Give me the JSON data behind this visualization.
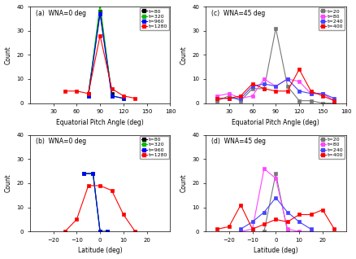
{
  "panel_a": {
    "title": "(a)  WNA=0 deg",
    "xlabel": "Equatorial Pitch Angle (deg)",
    "ylabel": "Count",
    "xlim": [
      0,
      180
    ],
    "ylim": [
      0,
      40
    ],
    "xticks": [
      30,
      60,
      90,
      120,
      150,
      180
    ],
    "yticks": [
      0,
      10,
      20,
      30,
      40
    ],
    "series": [
      {
        "label": "t=80",
        "color": "#000000",
        "x": [
          75,
          90,
          105
        ],
        "y": [
          4,
          38,
          4
        ]
      },
      {
        "label": "t=320",
        "color": "#00bb00",
        "x": [
          75,
          90,
          105,
          120
        ],
        "y": [
          3,
          41,
          3,
          2
        ]
      },
      {
        "label": "t=960",
        "color": "#0000ff",
        "x": [
          75,
          90,
          105,
          120
        ],
        "y": [
          3,
          37,
          3,
          2
        ]
      },
      {
        "label": "t=1280",
        "color": "#ff0000",
        "x": [
          45,
          60,
          75,
          90,
          105,
          120,
          135
        ],
        "y": [
          5,
          5,
          4,
          28,
          6,
          3,
          2
        ]
      }
    ]
  },
  "panel_b": {
    "title": "(b)  WNA=0 deg",
    "xlabel": "Latitude (deg)",
    "ylabel": "Count",
    "xlim": [
      -30,
      30
    ],
    "ylim": [
      0,
      40
    ],
    "xticks": [
      -20,
      -10,
      0,
      10,
      20
    ],
    "yticks": [
      0,
      10,
      20,
      30,
      40
    ],
    "series": [
      {
        "label": "t=80",
        "color": "#000000",
        "x": [
          -7,
          -3,
          0,
          3
        ],
        "y": [
          24,
          24,
          0,
          0
        ]
      },
      {
        "label": "t=320",
        "color": "#00bb00",
        "x": [
          -7,
          -3,
          0,
          3
        ],
        "y": [
          24,
          24,
          0,
          0
        ]
      },
      {
        "label": "t=960",
        "color": "#0000ff",
        "x": [
          -7,
          -3,
          0,
          3
        ],
        "y": [
          24,
          24,
          0,
          0
        ]
      },
      {
        "label": "t=1280",
        "color": "#ff0000",
        "x": [
          -15,
          -10,
          -5,
          0,
          5,
          10,
          15
        ],
        "y": [
          0,
          5,
          19,
          19,
          17,
          7,
          0
        ]
      }
    ]
  },
  "panel_c": {
    "title": "(c)  WNA=45 deg",
    "xlabel": "Equatorial Pitch Angle (deg)",
    "ylabel": "Count",
    "xlim": [
      0,
      180
    ],
    "ylim": [
      0,
      40
    ],
    "xticks": [
      30,
      60,
      90,
      120,
      150,
      180
    ],
    "yticks": [
      0,
      10,
      20,
      30,
      40
    ],
    "series": [
      {
        "label": "t=20",
        "color": "#777777",
        "x": [
          15,
          30,
          45,
          60,
          75,
          90,
          105,
          120,
          135,
          150,
          165
        ],
        "y": [
          1,
          3,
          1,
          6,
          6,
          31,
          7,
          1,
          1,
          0,
          0
        ]
      },
      {
        "label": "t=80",
        "color": "#ff44ff",
        "x": [
          15,
          30,
          45,
          60,
          75,
          90,
          105,
          120,
          135,
          150,
          165
        ],
        "y": [
          3,
          4,
          2,
          3,
          10,
          7,
          10,
          9,
          4,
          4,
          1
        ]
      },
      {
        "label": "t=240",
        "color": "#4444ff",
        "x": [
          15,
          30,
          45,
          60,
          75,
          90,
          105,
          120,
          135,
          150,
          165
        ],
        "y": [
          2,
          2,
          2,
          7,
          8,
          7,
          10,
          5,
          4,
          4,
          2
        ]
      },
      {
        "label": "t=400",
        "color": "#ff0000",
        "x": [
          15,
          30,
          45,
          60,
          75,
          90,
          105,
          120,
          135,
          150,
          165
        ],
        "y": [
          2,
          2,
          3,
          8,
          6,
          5,
          5,
          14,
          5,
          3,
          1
        ]
      }
    ]
  },
  "panel_d": {
    "title": "(d)  WNA=45 deg",
    "xlabel": "Latitude (deg)",
    "ylabel": "Count",
    "xlim": [
      -30,
      30
    ],
    "ylim": [
      0,
      40
    ],
    "xticks": [
      -20,
      -10,
      0,
      10,
      20
    ],
    "yticks": [
      0,
      10,
      20,
      30,
      40
    ],
    "series": [
      {
        "label": "t=20",
        "color": "#777777",
        "x": [
          -5,
          0,
          5
        ],
        "y": [
          0,
          24,
          0
        ]
      },
      {
        "label": "t=80",
        "color": "#ff44ff",
        "x": [
          -15,
          -10,
          -5,
          0,
          5,
          10,
          15
        ],
        "y": [
          0,
          1,
          26,
          22,
          1,
          0,
          0
        ]
      },
      {
        "label": "t=240",
        "color": "#4444ff",
        "x": [
          -15,
          -10,
          -5,
          0,
          5,
          10,
          15
        ],
        "y": [
          1,
          4,
          8,
          14,
          8,
          4,
          1
        ]
      },
      {
        "label": "t=400",
        "color": "#ff0000",
        "x": [
          -25,
          -20,
          -15,
          -10,
          -5,
          0,
          5,
          10,
          15,
          20,
          25
        ],
        "y": [
          1,
          2,
          11,
          1,
          3,
          5,
          4,
          7,
          7,
          9,
          1
        ]
      }
    ]
  }
}
